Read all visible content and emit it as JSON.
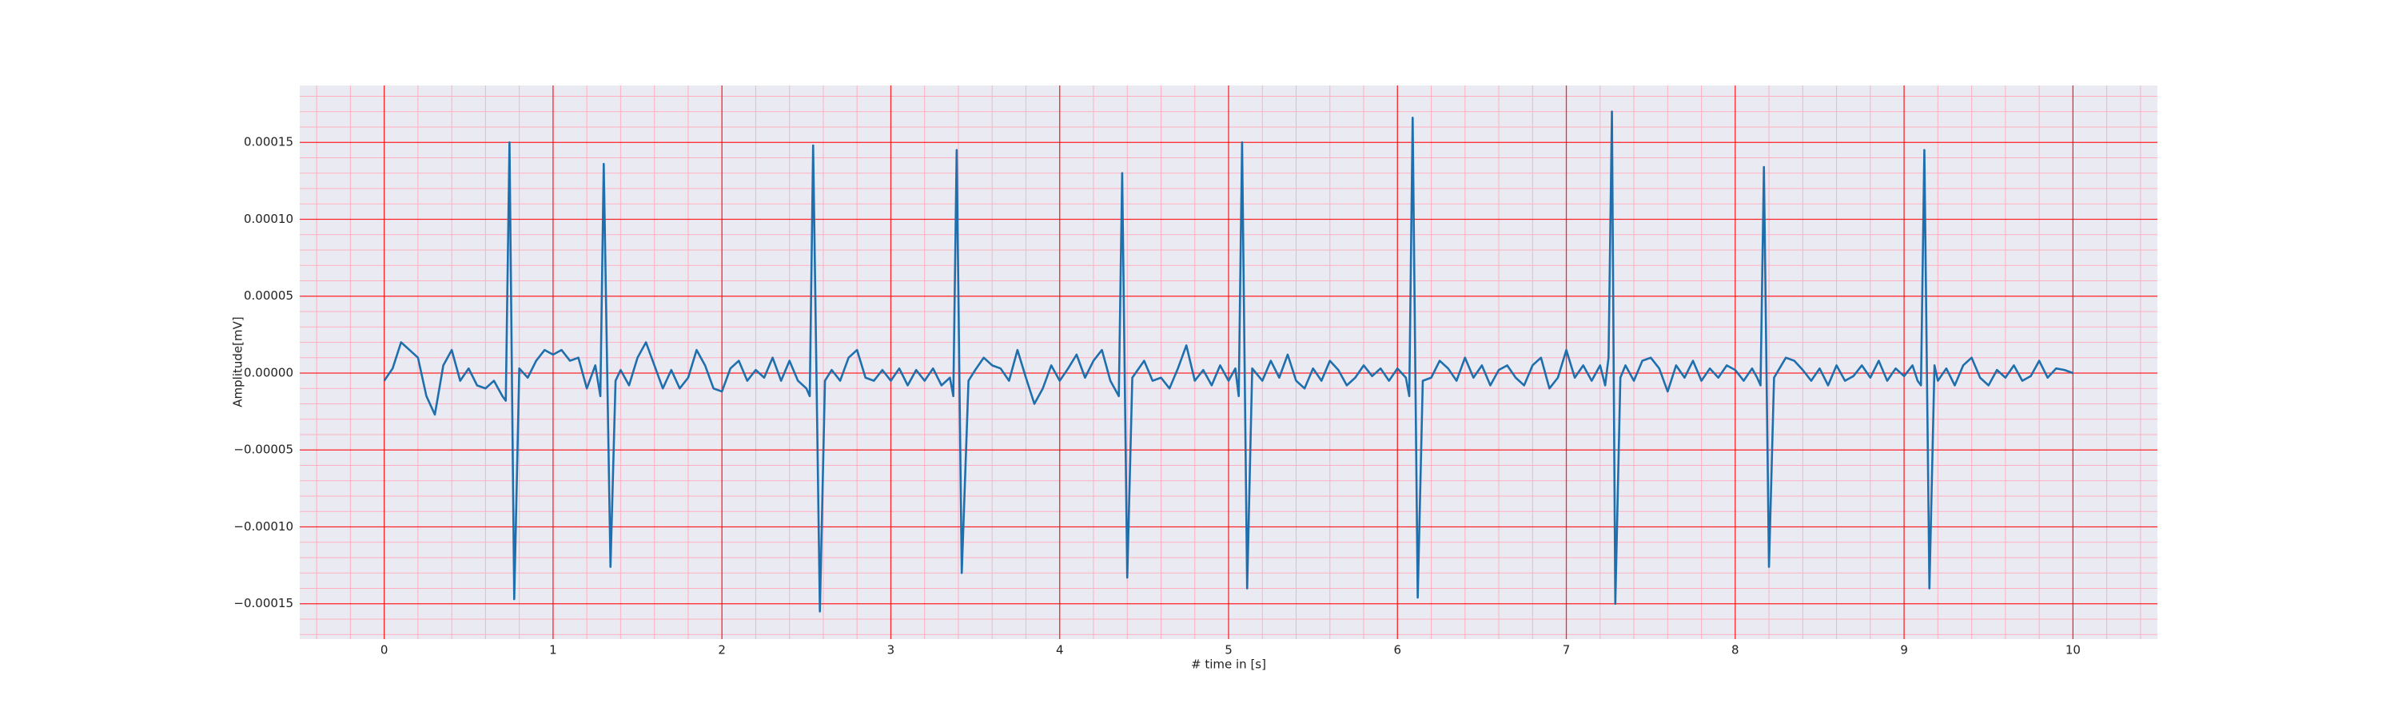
{
  "chart_data": {
    "type": "line",
    "xlabel": "# time in [s]",
    "ylabel": "Amplitude[mV]",
    "xlim": [
      -0.5,
      10.5
    ],
    "ylim": [
      -0.000173,
      0.000187
    ],
    "xticks": [
      0,
      1,
      2,
      3,
      4,
      5,
      6,
      7,
      8,
      9,
      10
    ],
    "yticks": [
      {
        "value": -0.00015,
        "label": "−0.00015"
      },
      {
        "value": -0.0001,
        "label": "−0.00010"
      },
      {
        "value": -5e-05,
        "label": "−0.00005"
      },
      {
        "value": 0,
        "label": "0.00000"
      },
      {
        "value": 5e-05,
        "label": "0.00005"
      },
      {
        "value": 0.0001,
        "label": "0.00010"
      },
      {
        "value": 0.00015,
        "label": "0.00015"
      }
    ],
    "grid": true,
    "grid_color": "#ff0000",
    "minor_grid": {
      "x": 0.2,
      "y": 1e-05,
      "color": "#ffb0c0"
    },
    "background": "#eaeaf2",
    "x": [
      0,
      0.05,
      0.1,
      0.15,
      0.2,
      0.25,
      0.3,
      0.35,
      0.4,
      0.45,
      0.5,
      0.55,
      0.6,
      0.65,
      0.7,
      0.72,
      0.742,
      0.77,
      0.8,
      0.85,
      0.9,
      0.95,
      1.0,
      1.05,
      1.1,
      1.15,
      1.2,
      1.25,
      1.28,
      1.3,
      1.34,
      1.37,
      1.4,
      1.45,
      1.5,
      1.55,
      1.6,
      1.65,
      1.7,
      1.75,
      1.8,
      1.85,
      1.9,
      1.95,
      2.0,
      2.05,
      2.1,
      2.15,
      2.2,
      2.25,
      2.3,
      2.35,
      2.4,
      2.45,
      2.5,
      2.52,
      2.54,
      2.58,
      2.61,
      2.65,
      2.7,
      2.75,
      2.8,
      2.85,
      2.9,
      2.95,
      3.0,
      3.05,
      3.1,
      3.15,
      3.2,
      3.25,
      3.3,
      3.35,
      3.37,
      3.39,
      3.42,
      3.46,
      3.5,
      3.55,
      3.6,
      3.65,
      3.7,
      3.75,
      3.8,
      3.85,
      3.9,
      3.95,
      4.0,
      4.05,
      4.1,
      4.15,
      4.2,
      4.25,
      4.3,
      4.35,
      4.37,
      4.4,
      4.43,
      4.5,
      4.55,
      4.6,
      4.65,
      4.7,
      4.75,
      4.8,
      4.85,
      4.9,
      4.95,
      5.0,
      5.04,
      5.06,
      5.08,
      5.11,
      5.14,
      5.2,
      5.25,
      5.3,
      5.35,
      5.4,
      5.45,
      5.5,
      5.55,
      5.6,
      5.65,
      5.7,
      5.75,
      5.8,
      5.85,
      5.9,
      5.95,
      6.0,
      6.05,
      6.07,
      6.09,
      6.12,
      6.15,
      6.2,
      6.25,
      6.3,
      6.35,
      6.4,
      6.45,
      6.5,
      6.55,
      6.6,
      6.65,
      6.7,
      6.75,
      6.8,
      6.85,
      6.9,
      6.95,
      7.0,
      7.05,
      7.1,
      7.15,
      7.2,
      7.23,
      7.25,
      7.27,
      7.29,
      7.32,
      7.35,
      7.4,
      7.45,
      7.5,
      7.55,
      7.6,
      7.65,
      7.7,
      7.75,
      7.8,
      7.85,
      7.9,
      7.95,
      8.0,
      8.05,
      8.1,
      8.13,
      8.15,
      8.17,
      8.2,
      8.23,
      8.3,
      8.35,
      8.4,
      8.45,
      8.5,
      8.55,
      8.6,
      8.65,
      8.7,
      8.75,
      8.8,
      8.85,
      8.9,
      8.95,
      9.0,
      9.05,
      9.08,
      9.1,
      9.12,
      9.15,
      9.18,
      9.2,
      9.25,
      9.3,
      9.35,
      9.4,
      9.45,
      9.5,
      9.55,
      9.6,
      9.65,
      9.7,
      9.75,
      9.8,
      9.85,
      9.9,
      9.95,
      10.0
    ],
    "series": [
      {
        "color": "#1f6fad",
        "values": [
          -5e-06,
          3e-06,
          2e-05,
          1.5e-05,
          1e-05,
          -1.5e-05,
          -2.7e-05,
          5e-06,
          1.5e-05,
          -5e-06,
          3e-06,
          -8e-06,
          -1e-05,
          -5e-06,
          -1.5e-05,
          -1.8e-05,
          0.00015,
          -0.000147,
          3e-06,
          -3e-06,
          8e-06,
          1.5e-05,
          1.2e-05,
          1.5e-05,
          8e-06,
          1e-05,
          -1e-05,
          5e-06,
          -1.5e-05,
          0.000136,
          -0.000126,
          -5e-06,
          2e-06,
          -8e-06,
          1e-05,
          2e-05,
          5e-06,
          -1e-05,
          2e-06,
          -1e-05,
          -3e-06,
          1.5e-05,
          5e-06,
          -1e-05,
          -1.2e-05,
          3e-06,
          8e-06,
          -5e-06,
          2e-06,
          -3e-06,
          1e-05,
          -5e-06,
          8e-06,
          -5e-06,
          -1e-05,
          -1.5e-05,
          0.000148,
          -0.000155,
          -5e-06,
          2e-06,
          -5e-06,
          1e-05,
          1.5e-05,
          -3e-06,
          -5e-06,
          2e-06,
          -5e-06,
          3e-06,
          -8e-06,
          2e-06,
          -5e-06,
          3e-06,
          -8e-06,
          -3e-06,
          -1.5e-05,
          0.000145,
          -0.00013,
          -5e-06,
          2e-06,
          1e-05,
          5e-06,
          3e-06,
          -5e-06,
          1.5e-05,
          -3e-06,
          -2e-05,
          -1e-05,
          5e-06,
          -5e-06,
          3e-06,
          1.2e-05,
          -3e-06,
          8e-06,
          1.5e-05,
          -5e-06,
          -1.5e-05,
          0.00013,
          -0.000133,
          -3e-06,
          8e-06,
          -5e-06,
          -3e-06,
          -1e-05,
          3e-06,
          1.8e-05,
          -5e-06,
          2e-06,
          -8e-06,
          5e-06,
          -5e-06,
          3e-06,
          -1.5e-05,
          0.00015,
          -0.00014,
          3e-06,
          -5e-06,
          8e-06,
          -3e-06,
          1.2e-05,
          -5e-06,
          -1e-05,
          3e-06,
          -5e-06,
          8e-06,
          2e-06,
          -8e-06,
          -3e-06,
          5e-06,
          -2e-06,
          3e-06,
          -5e-06,
          3e-06,
          -3e-06,
          -1.5e-05,
          0.000166,
          -0.000146,
          -5e-06,
          -3e-06,
          8e-06,
          3e-06,
          -5e-06,
          1e-05,
          -3e-06,
          5e-06,
          -8e-06,
          2e-06,
          5e-06,
          -3e-06,
          -8e-06,
          5e-06,
          1e-05,
          -1e-05,
          -3e-06,
          1.5e-05,
          -3e-06,
          5e-06,
          -5e-06,
          5e-06,
          -8e-06,
          1e-05,
          0.00017,
          -0.00015,
          -3e-06,
          5e-06,
          -5e-06,
          8e-06,
          1e-05,
          3e-06,
          -1.2e-05,
          5e-06,
          -3e-06,
          8e-06,
          -5e-06,
          3e-06,
          -3e-06,
          5e-06,
          2e-06,
          -5e-06,
          3e-06,
          -3e-06,
          -8e-06,
          0.000134,
          -0.000126,
          -3e-06,
          1e-05,
          8e-06,
          2e-06,
          -5e-06,
          3e-06,
          -8e-06,
          5e-06,
          -5e-06,
          -2e-06,
          5e-06,
          -3e-06,
          8e-06,
          -5e-06,
          3e-06,
          -2e-06,
          5e-06,
          -5e-06,
          -8e-06,
          0.000145,
          -0.00014,
          5e-06,
          -5e-06,
          3e-06,
          -8e-06,
          5e-06,
          1e-05,
          -3e-06,
          -8e-06,
          2e-06,
          -3e-06,
          5e-06,
          -5e-06,
          -2e-06,
          8e-06,
          -3e-06,
          3e-06,
          2e-06,
          0
        ]
      }
    ]
  }
}
